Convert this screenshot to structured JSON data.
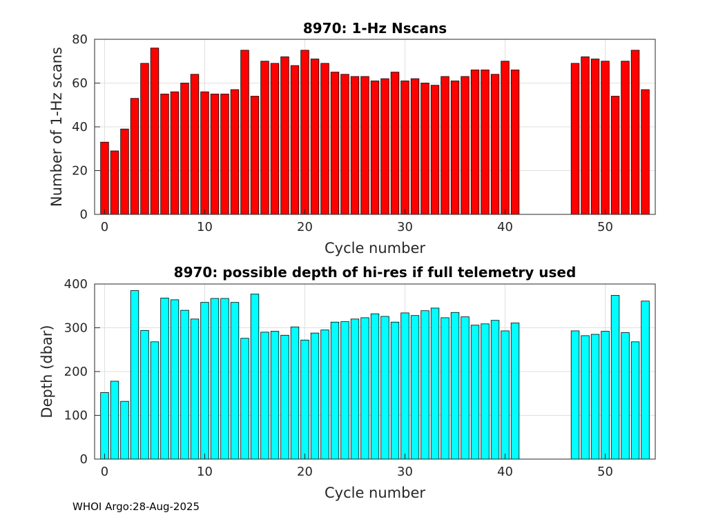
{
  "footer": "WHOI Argo:28-Aug-2025",
  "chart_data": [
    {
      "type": "bar",
      "title": "8970: 1-Hz Nscans",
      "xlabel": "Cycle number",
      "ylabel": "Number of 1-Hz scans",
      "xlim": [
        -1,
        55
      ],
      "ylim": [
        0,
        80
      ],
      "xticks": [
        0,
        10,
        20,
        30,
        40,
        50
      ],
      "yticks": [
        0,
        20,
        40,
        60,
        80
      ],
      "grid": true,
      "bar_color": "#ff0000",
      "x": [
        0,
        1,
        2,
        3,
        4,
        5,
        6,
        7,
        8,
        9,
        10,
        11,
        12,
        13,
        14,
        15,
        16,
        17,
        18,
        19,
        20,
        21,
        22,
        23,
        24,
        25,
        26,
        27,
        28,
        29,
        30,
        31,
        32,
        33,
        34,
        35,
        36,
        37,
        38,
        39,
        40,
        41,
        47,
        48,
        49,
        50,
        51,
        52,
        53,
        54
      ],
      "values": [
        33,
        29,
        39,
        53,
        69,
        76,
        55,
        56,
        60,
        64,
        56,
        55,
        55,
        57,
        75,
        54,
        70,
        69,
        72,
        68,
        75,
        71,
        69,
        65,
        64,
        63,
        63,
        61,
        62,
        65,
        61,
        62,
        60,
        59,
        63,
        61,
        63,
        66,
        66,
        64,
        70,
        66,
        69,
        72,
        71,
        70,
        54,
        70,
        75,
        57
      ]
    },
    {
      "type": "bar",
      "title": "8970: possible depth of hi-res if full telemetry used",
      "xlabel": "Cycle number",
      "ylabel": "Depth (dbar)",
      "xlim": [
        -1,
        55
      ],
      "ylim": [
        0,
        400
      ],
      "xticks": [
        0,
        10,
        20,
        30,
        40,
        50
      ],
      "yticks": [
        0,
        100,
        200,
        300,
        400
      ],
      "grid": true,
      "bar_color": "#00ffff",
      "x": [
        0,
        1,
        2,
        3,
        4,
        5,
        6,
        7,
        8,
        9,
        10,
        11,
        12,
        13,
        14,
        15,
        16,
        17,
        18,
        19,
        20,
        21,
        22,
        23,
        24,
        25,
        26,
        27,
        28,
        29,
        30,
        31,
        32,
        33,
        34,
        35,
        36,
        37,
        38,
        39,
        40,
        41,
        47,
        48,
        49,
        50,
        51,
        52,
        53,
        54
      ],
      "values": [
        152,
        178,
        132,
        385,
        294,
        268,
        368,
        364,
        340,
        320,
        358,
        367,
        367,
        358,
        276,
        377,
        290,
        292,
        283,
        302,
        272,
        288,
        295,
        313,
        314,
        320,
        323,
        332,
        326,
        313,
        334,
        328,
        339,
        345,
        323,
        335,
        325,
        306,
        309,
        317,
        293,
        311,
        293,
        282,
        285,
        292,
        374,
        289,
        268,
        361
      ]
    }
  ]
}
